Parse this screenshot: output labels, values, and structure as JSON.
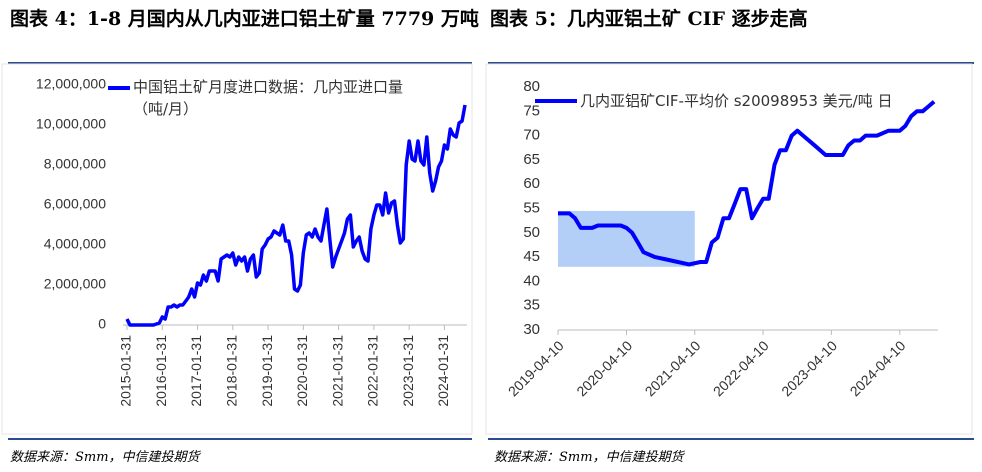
{
  "chart_data": [
    {
      "type": "line",
      "title": "图表 4：1-8 月国内从几内亚进口铝土矿量 7779 万吨",
      "source": "数据来源：Smm，中信建投期货",
      "categories": [
        "2015-01-31",
        null,
        null,
        null,
        null,
        null,
        null,
        null,
        null,
        null,
        null,
        null,
        "2016-01-31",
        null,
        null,
        null,
        null,
        null,
        null,
        null,
        null,
        null,
        null,
        null,
        "2017-01-31",
        null,
        null,
        null,
        null,
        null,
        null,
        null,
        null,
        null,
        null,
        null,
        "2018-01-31",
        null,
        null,
        null,
        null,
        null,
        null,
        null,
        null,
        null,
        null,
        null,
        "2019-01-31",
        null,
        null,
        null,
        null,
        null,
        null,
        null,
        null,
        null,
        null,
        null,
        "2020-01-31",
        null,
        null,
        null,
        null,
        null,
        null,
        null,
        null,
        null,
        null,
        null,
        "2021-01-31",
        null,
        null,
        null,
        null,
        null,
        null,
        null,
        null,
        null,
        null,
        null,
        "2022-01-31",
        null,
        null,
        null,
        null,
        null,
        null,
        null,
        null,
        null,
        null,
        null,
        "2023-01-31",
        null,
        null,
        null,
        null,
        null,
        null,
        null,
        null,
        null,
        null,
        null,
        "2024-01-31",
        null,
        null,
        null,
        null,
        null,
        null,
        null
      ],
      "series": [
        {
          "name": "中国铝土矿月度进口数据：几内亚进口量（吨/月）",
          "color": "#0000ff",
          "values": [
            300000,
            0,
            0,
            0,
            0,
            0,
            0,
            0,
            0,
            0,
            50000,
            100000,
            400000,
            300000,
            900000,
            900000,
            1000000,
            900000,
            1000000,
            1000000,
            1200000,
            1400000,
            1800000,
            1400000,
            2100000,
            2000000,
            2500000,
            2200000,
            2700000,
            2700000,
            2700000,
            2200000,
            3300000,
            3400000,
            3500000,
            3400000,
            3600000,
            3000000,
            3400000,
            3200000,
            3400000,
            2700000,
            3300000,
            3500000,
            2400000,
            2600000,
            3800000,
            4000000,
            4300000,
            4400000,
            4700000,
            4600000,
            4500000,
            5000000,
            4200000,
            4200000,
            3500000,
            1800000,
            1700000,
            2000000,
            3600000,
            4500000,
            4600000,
            4400000,
            4800000,
            4400000,
            4200000,
            5000000,
            5800000,
            4300000,
            2900000,
            3400000,
            3800000,
            4200000,
            4600000,
            5300000,
            5500000,
            3900000,
            4200000,
            4400000,
            3700000,
            3300000,
            3200000,
            4800000,
            5500000,
            6000000,
            6000000,
            5500000,
            6600000,
            5600000,
            6100000,
            6200000,
            5000000,
            4100000,
            4300000,
            8000000,
            9200000,
            8300000,
            8200000,
            9200000,
            8200000,
            8000000,
            9400000,
            7600000,
            6700000,
            7200000,
            7900000,
            8200000,
            9000000,
            8800000,
            9800000,
            9500000,
            9400000,
            10100000,
            10200000,
            11000000
          ]
        }
      ],
      "ylim": [
        0,
        12000000
      ],
      "yticks": [
        0,
        {
          "value": 2000000,
          "label": "2,000,000"
        },
        {
          "value": 4000000,
          "label": "4,000,000"
        },
        {
          "value": 6000000,
          "label": "6,000,000"
        },
        {
          "value": 8000000,
          "label": "8,000,000"
        },
        {
          "value": 10000000,
          "label": "10,000,000"
        },
        {
          "value": 12000000,
          "label": "12,000,000"
        }
      ]
    },
    {
      "type": "line",
      "title": "图表 5：几内亚铝土矿 CIF 逐步走高",
      "source": "数据来源：Smm，中信建投期货",
      "x": [
        "2019-04-10",
        "2019-06-10",
        "2019-07-10",
        "2019-08-10",
        "2019-10-10",
        "2019-11-10",
        "2020-01-10",
        "2020-03-10",
        "2020-04-10",
        "2020-05-10",
        "2020-06-10",
        "2020-07-10",
        "2020-09-10",
        "2020-11-10",
        "2021-01-10",
        "2021-03-10",
        "2021-05-10",
        "2021-06-10",
        "2021-07-10",
        "2021-08-10",
        "2021-09-10",
        "2021-10-10",
        "2021-11-10",
        "2021-12-10",
        "2022-01-10",
        "2022-02-10",
        "2022-03-10",
        "2022-04-10",
        "2022-05-10",
        "2022-06-10",
        "2022-07-10",
        "2022-08-10",
        "2022-09-10",
        "2022-10-10",
        "2022-11-10",
        "2023-01-10",
        "2023-03-10",
        "2023-04-10",
        "2023-06-10",
        "2023-07-10",
        "2023-08-10",
        "2023-09-10",
        "2023-10-10",
        "2023-12-10",
        "2024-02-10",
        "2024-04-10",
        "2024-05-10",
        "2024-06-10",
        "2024-07-10",
        "2024-08-10",
        "2024-09-10",
        "2024-10-10"
      ],
      "series": [
        {
          "name": "几内亚铝矿CIF-平均价 s20098953 美元/吨 日",
          "color": "#0000ff",
          "values": [
            54,
            54,
            53,
            51,
            51,
            51.5,
            51.5,
            51.5,
            51,
            50,
            48,
            46,
            45,
            44.5,
            44,
            43.5,
            44,
            44,
            48,
            49,
            53,
            53,
            56,
            59,
            59,
            53,
            55,
            57,
            57,
            64,
            67,
            67,
            70,
            71,
            70,
            68,
            66,
            66,
            66,
            68,
            69,
            69,
            70,
            70,
            71,
            71,
            72,
            74,
            75,
            75,
            76,
            77
          ]
        }
      ],
      "xlim": [
        "2019-04-10",
        "2024-10-31"
      ],
      "xticks": [
        "2019-04-10",
        "2020-04-10",
        "2021-04-10",
        "2022-04-10",
        "2023-04-10",
        "2024-04-10"
      ],
      "ylim": [
        30,
        80
      ],
      "yticks": [
        30,
        35,
        40,
        45,
        50,
        55,
        60,
        65,
        70,
        75,
        80
      ],
      "highlight": {
        "x": [
          "2019-04-10",
          "2021-04-10"
        ],
        "y": [
          43,
          54.5
        ],
        "color": "#b4cff7"
      }
    }
  ]
}
